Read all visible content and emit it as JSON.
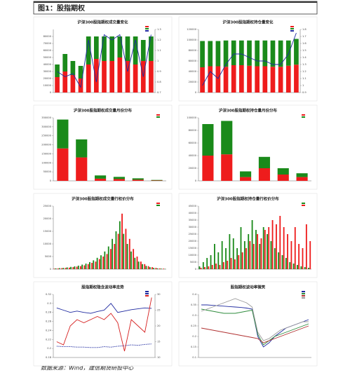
{
  "header": {
    "title": "图1：股指期权"
  },
  "footer": {
    "source": "数据来源：Wind，建信期货研投中心"
  },
  "chart_data": [
    {
      "type": "combo",
      "title": "沪深300股指期权成交量变化",
      "stacked": true,
      "categories": [
        null,
        null,
        null,
        null,
        null,
        null,
        null,
        null,
        null,
        null,
        null,
        null,
        null
      ],
      "ylim": [
        0,
        90000
      ],
      "yticks": [
        0,
        10000,
        20000,
        30000,
        40000,
        50000,
        60000,
        70000,
        80000
      ],
      "y2lim": [
        0.7,
        1.3
      ],
      "y2ticks": [
        0.7,
        0.8,
        0.9,
        1.0,
        1.1,
        1.2,
        1.3
      ],
      "series": [
        {
          "color": "#ee1c1c",
          "values": [
            22000,
            30000,
            25000,
            20000,
            40000,
            48000,
            45000,
            45000,
            50000,
            45000,
            40000,
            45000,
            45000
          ]
        },
        {
          "color": "#1a8a1a",
          "values": [
            18000,
            25000,
            20000,
            18000,
            40000,
            32000,
            35000,
            35000,
            30000,
            35000,
            40000,
            30000,
            35000
          ]
        },
        {
          "color": "#1f2aa0",
          "axis": "y2",
          "values": [
            0.9,
            0.85,
            0.88,
            0.75,
            1.2,
            0.8,
            1.25,
            1.2,
            1.25,
            0.9,
            1.2,
            0.85,
            1.25
          ]
        }
      ]
    },
    {
      "type": "combo",
      "title": "沪深300股指期权持仓量变化",
      "stacked": true,
      "categories": [
        null,
        null,
        null,
        null,
        null,
        null,
        null,
        null,
        null,
        null,
        null,
        null,
        null
      ],
      "ylim": [
        0,
        120000
      ],
      "yticks": [
        0,
        20000,
        40000,
        60000,
        80000,
        100000,
        120000
      ],
      "y2lim": [
        0.9,
        1.8
      ],
      "y2ticks": [
        0.9,
        1.0,
        1.1,
        1.2,
        1.3,
        1.4,
        1.5,
        1.6,
        1.7,
        1.8
      ],
      "series": [
        {
          "color": "#ee1c1c",
          "values": [
            48000,
            50000,
            50000,
            49000,
            52000,
            52000,
            51000,
            50000,
            50000,
            49000,
            49000,
            51000,
            53000
          ]
        },
        {
          "color": "#1a8a1a",
          "values": [
            50000,
            48000,
            48000,
            50000,
            47000,
            47000,
            48000,
            49000,
            49000,
            50000,
            50000,
            48000,
            49000
          ]
        },
        {
          "color": "#1f2aa0",
          "axis": "y2",
          "values": [
            1.0,
            1.2,
            1.1,
            1.3,
            1.45,
            1.45,
            1.4,
            1.35,
            1.35,
            1.3,
            1.3,
            1.45,
            1.75
          ]
        }
      ]
    },
    {
      "type": "bar",
      "title": "沪深300股指期权成交量月份分布",
      "stacked": true,
      "categories": [
        null,
        null,
        null,
        null,
        null,
        null
      ],
      "ylim": [
        0,
        350000
      ],
      "yticks": [
        0,
        50000,
        100000,
        150000,
        200000,
        250000,
        300000,
        350000
      ],
      "series": [
        {
          "color": "#ee1c1c",
          "values": [
            180000,
            130000,
            12000,
            10000,
            6000,
            2000
          ]
        },
        {
          "color": "#1a8a1a",
          "values": [
            160000,
            100000,
            18000,
            12000,
            8000,
            3000
          ]
        }
      ]
    },
    {
      "type": "bar",
      "title": "沪深300股指期权持仓量月份分布",
      "stacked": true,
      "categories": [
        null,
        null,
        null,
        null,
        null,
        null
      ],
      "ylim": [
        0,
        100000
      ],
      "yticks": [
        0,
        20000,
        40000,
        60000,
        80000,
        100000
      ],
      "series": [
        {
          "color": "#ee1c1c",
          "values": [
            40000,
            42000,
            6000,
            20000,
            10000,
            6000
          ]
        },
        {
          "color": "#1a8a1a",
          "values": [
            50000,
            53000,
            9000,
            18000,
            10000,
            6000
          ]
        }
      ]
    },
    {
      "type": "bar",
      "title": "沪深300股指期权成交量行权价分布",
      "stacked": false,
      "categories": [
        null,
        null,
        null,
        null,
        null,
        null,
        null,
        null,
        null,
        null,
        null,
        null,
        null,
        null,
        null,
        null,
        null,
        null,
        null,
        null,
        null,
        null,
        null,
        null,
        null,
        null,
        null,
        null,
        null,
        null
      ],
      "ylim": [
        0,
        25000
      ],
      "yticks": [
        0,
        5000,
        10000,
        15000,
        20000,
        25000
      ],
      "series": [
        {
          "color": "#ee1c1c",
          "values": [
            200,
            300,
            400,
            500,
            600,
            800,
            1000,
            1200,
            1500,
            2000,
            2500,
            3000,
            4000,
            5000,
            6000,
            8000,
            10000,
            14000,
            22000,
            16000,
            12000,
            8000,
            5000,
            3000,
            2000,
            1200,
            800,
            500,
            300,
            200
          ]
        },
        {
          "color": "#1a8a1a",
          "values": [
            300,
            400,
            500,
            700,
            900,
            1100,
            1400,
            1800,
            2200,
            2800,
            3500,
            4500,
            5500,
            7000,
            9000,
            12000,
            15000,
            19000,
            14000,
            10000,
            7000,
            4500,
            3000,
            2000,
            1300,
            800,
            500,
            300,
            200,
            100
          ]
        }
      ]
    },
    {
      "type": "bar",
      "title": "沪深300股指期权持仓量行权价分布",
      "stacked": false,
      "categories": [
        null,
        null,
        null,
        null,
        null,
        null,
        null,
        null,
        null,
        null,
        null,
        null,
        null,
        null,
        null,
        null,
        null,
        null,
        null,
        null,
        null,
        null,
        null,
        null,
        null,
        null,
        null,
        null,
        null,
        null
      ],
      "ylim": [
        0,
        45000
      ],
      "yticks": [
        0,
        5000,
        10000,
        15000,
        20000,
        25000,
        30000,
        35000,
        40000,
        45000
      ],
      "series": [
        {
          "color": "#1a8a1a",
          "values": [
            2000,
            5000,
            8000,
            10000,
            18000,
            12000,
            20000,
            15000,
            25000,
            22000,
            15000,
            30000,
            20000,
            25000,
            35000,
            28000,
            18000,
            30000,
            25000,
            20000,
            15000,
            12000,
            10000,
            8000,
            5000,
            4000,
            3000,
            2000,
            1500,
            1000
          ]
        },
        {
          "color": "#ee1c1c",
          "values": [
            1000,
            1500,
            2000,
            3000,
            4000,
            3000,
            5000,
            6000,
            8000,
            7000,
            10000,
            12000,
            15000,
            20000,
            18000,
            25000,
            22000,
            28000,
            30000,
            35000,
            32000,
            38000,
            30000,
            25000,
            20000,
            30000,
            18000,
            15000,
            32000,
            20000
          ]
        }
      ]
    },
    {
      "type": "line",
      "title": "股指期权隐含波动率走势",
      "categories": [
        null,
        null,
        null,
        null,
        null,
        null,
        null,
        null,
        null,
        null,
        null,
        null,
        null,
        null,
        null
      ],
      "ylim": [
        0.18,
        0.32
      ],
      "yticks": [
        0.18,
        0.2,
        0.22,
        0.24,
        0.26,
        0.28,
        0.3,
        0.32
      ],
      "y2lim": [
        10,
        30
      ],
      "y2ticks": [
        10,
        15,
        20,
        25,
        30
      ],
      "series": [
        {
          "color": "#1f2aa0",
          "values": [
            0.29,
            0.285,
            0.28,
            0.283,
            0.28,
            0.278,
            0.282,
            0.285,
            0.3,
            0.28,
            0.283,
            0.286,
            0.288,
            0.29,
            0.289
          ]
        },
        {
          "color": "#1f2aa0",
          "dash": true,
          "values": [
            0.205,
            0.204,
            0.204,
            0.203,
            0.203,
            0.202,
            0.202,
            0.204,
            0.203,
            0.205,
            0.206,
            0.208,
            0.207,
            0.209,
            0.21
          ]
        },
        {
          "color": "#d62020",
          "axis": "y2",
          "values": [
            15,
            14,
            20,
            22,
            21,
            22,
            23,
            22,
            24,
            21,
            12,
            22,
            20,
            18,
            29
          ]
        }
      ]
    },
    {
      "type": "line",
      "title": "股指期权波动率微笑",
      "categories": [
        null,
        null,
        null,
        null,
        null,
        null,
        null,
        null,
        null,
        null,
        null,
        null,
        null,
        null,
        null,
        null,
        null,
        null,
        null,
        null
      ],
      "ylim": [
        0.1,
        0.4
      ],
      "yticks": [
        0.1,
        0.15,
        0.2,
        0.25,
        0.3,
        0.35,
        0.4
      ],
      "series": [
        {
          "color": "#1f2aa0",
          "values": [
            0.35,
            0.35,
            0.348,
            0.346,
            0.344,
            0.342,
            0.34,
            0.338,
            0.335,
            0.33,
            0.2,
            0.15,
            0.17,
            0.2,
            0.22,
            0.24,
            0.25,
            0.26,
            0.27,
            0.28
          ]
        },
        {
          "color": "#2e8b3c",
          "values": [
            0.33,
            0.325,
            0.32,
            0.315,
            0.31,
            0.31,
            0.31,
            0.315,
            0.32,
            0.325,
            0.21,
            0.16,
            0.18,
            0.2,
            0.21,
            0.22,
            0.23,
            0.24,
            0.25,
            0.26
          ]
        },
        {
          "color": "#b03030",
          "values": [
            0.24,
            0.235,
            0.23,
            0.225,
            0.22,
            0.215,
            0.21,
            0.205,
            0.2,
            0.195,
            0.19,
            0.17,
            0.18,
            0.19,
            0.2,
            0.21,
            0.22,
            0.23,
            0.24,
            0.25
          ]
        },
        {
          "color": "#999999",
          "values": [
            0.32,
            0.33,
            0.34,
            0.35,
            0.36,
            0.37,
            0.38,
            0.37,
            0.36,
            0.34,
            0.22,
            0.18,
            0.19,
            0.21,
            0.23,
            0.24,
            0.25,
            0.26,
            0.27,
            0.27
          ]
        }
      ]
    }
  ]
}
